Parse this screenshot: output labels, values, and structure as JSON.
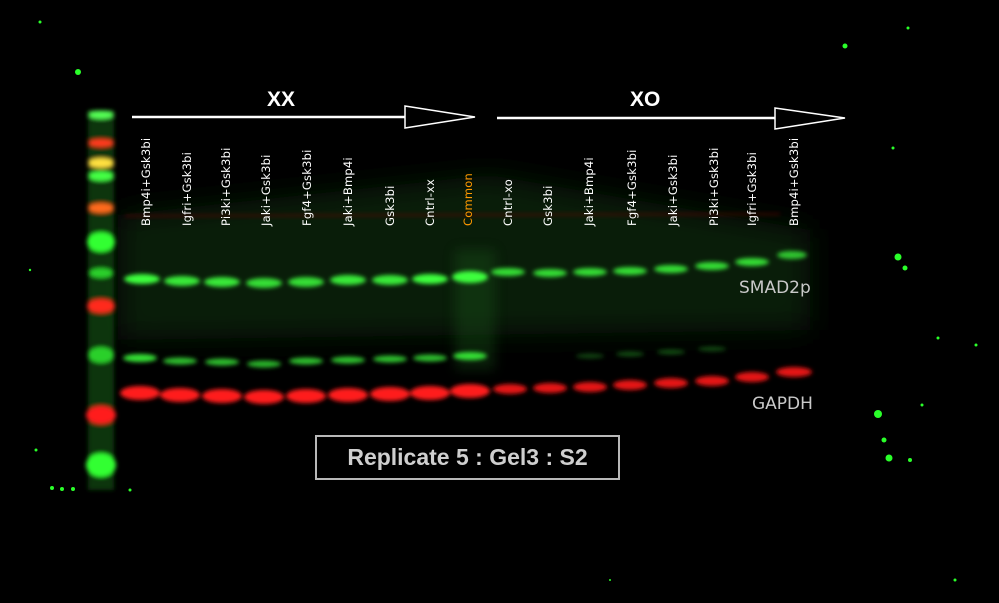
{
  "groups": {
    "xx": "XX",
    "xo": "XO"
  },
  "lanes_xx": [
    "Bmp4i+Gsk3bi",
    "Igfri+Gsk3bi",
    "Pi3ki+Gsk3bi",
    "Jaki+Gsk3bi",
    "Fgf4+Gsk3bi",
    "Jaki+Bmp4i",
    "Gsk3bi",
    "Cntrl-xx"
  ],
  "lane_common": "Common",
  "lanes_xo": [
    "Cntrl-xo",
    "Gsk3bi",
    "Jaki+Bmp4i",
    "Fgf4+Gsk3bi",
    "Jaki+Gsk3bi",
    "Pi3ki+Gsk3bi",
    "Igfri+Gsk3bi",
    "Bmp4i+Gsk3bi"
  ],
  "bands": {
    "smad": "SMAD2p",
    "gapdh": "GAPDH"
  },
  "replicate_label": "Replicate 5 : Gel3 : S2",
  "colors": {
    "green_band": "#3dff3d",
    "red_band": "#ff1a1a",
    "common_label": "#ff9900"
  }
}
